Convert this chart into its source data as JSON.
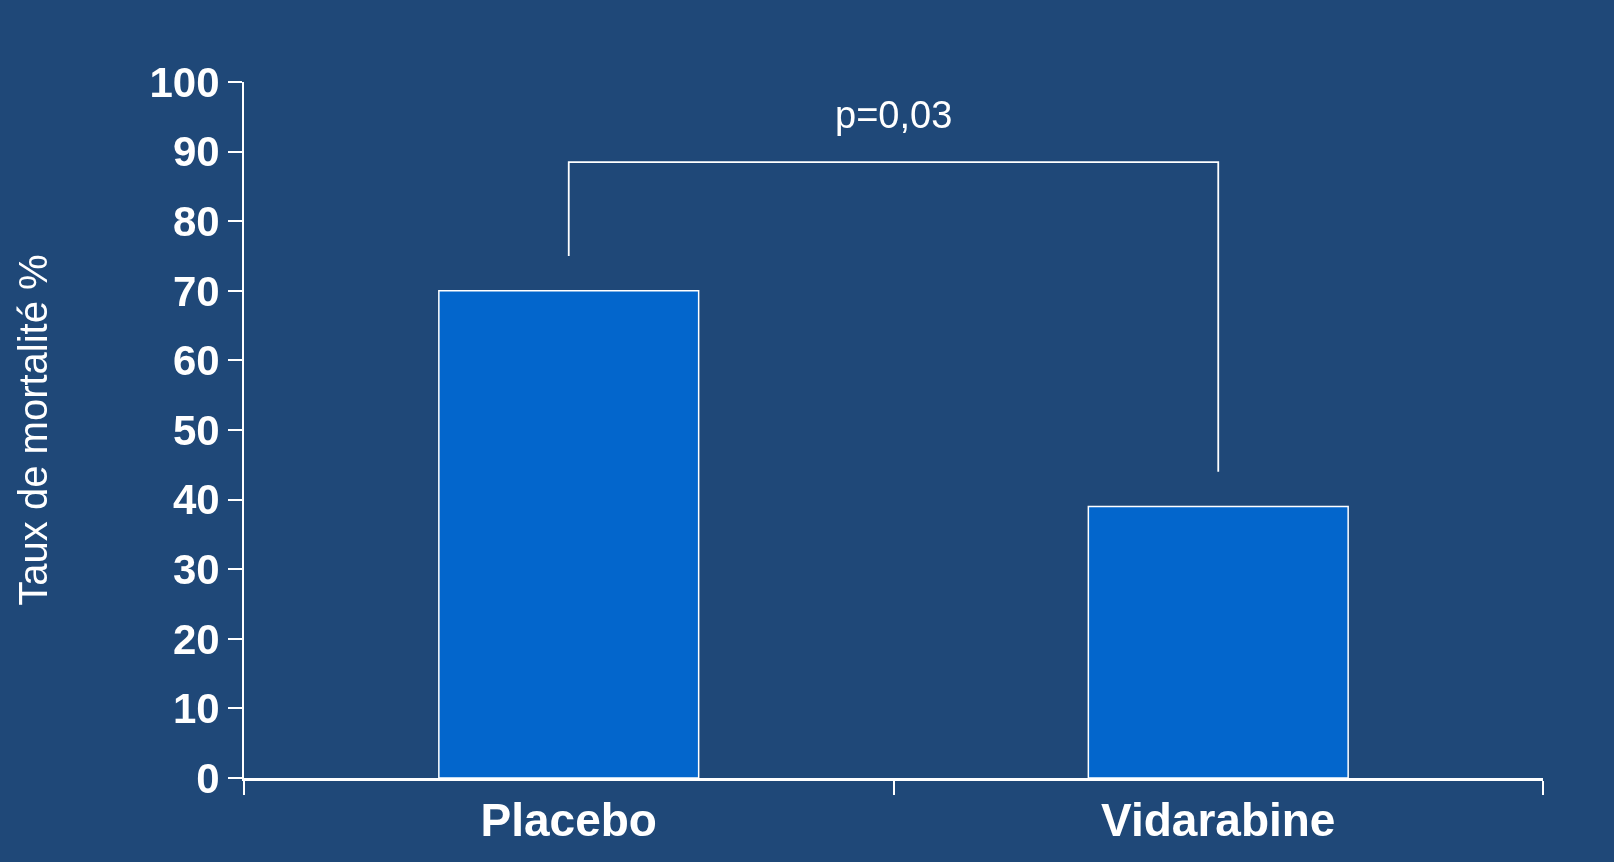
{
  "chart_data": {
    "type": "bar",
    "ylabel": "Taux de mortalité %",
    "categories": [
      "Placebo",
      "Vidarabine"
    ],
    "values": [
      70,
      39
    ],
    "color": "#0366cc",
    "ylim": [
      0,
      100
    ],
    "yticks": [
      0,
      10,
      20,
      30,
      40,
      50,
      60,
      70,
      80,
      90,
      100
    ],
    "annotations": [
      "p=0,03"
    ]
  }
}
